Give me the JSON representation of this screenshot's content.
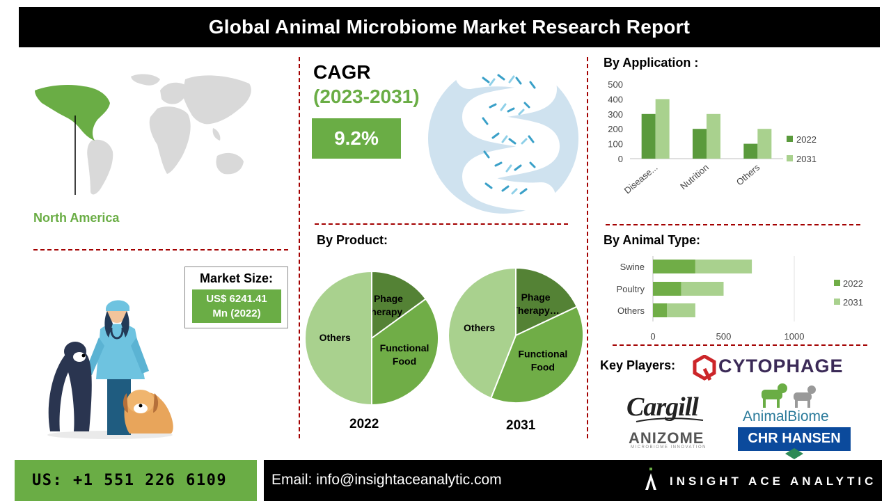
{
  "header": {
    "title": "Global Animal Microbiome Market Research Report"
  },
  "region": {
    "label": "North America"
  },
  "market_size": {
    "label": "Market Size:",
    "value_line1": "US$ 6241.41",
    "value_line2": "Mn (2022)"
  },
  "cagr": {
    "label": "CAGR",
    "period": "(2023-2031)",
    "value": "9.2%"
  },
  "sections": {
    "by_application": "By Application :",
    "by_product": "By Product:",
    "by_animal_type": "By  Animal Type:",
    "key_players": "Key Players:"
  },
  "key_players": {
    "cytophage": "CYTOPHAGE",
    "cargill": "Cargill",
    "animalbiome": "AnimalBiome",
    "anizome": "ANIZOME",
    "anizome_tagline": "MICROBIOME INNOVATION",
    "chr_hansen": "CHR HANSEN"
  },
  "colors": {
    "accent_green": "#6aad45",
    "dark_green": "#5a9a3c",
    "light_green": "#a9d18e",
    "mid_green": "#70ad47",
    "divider_red": "#a30000"
  },
  "chart_data": [
    {
      "type": "bar",
      "title": "By Application :",
      "categories": [
        "Disease...",
        "Nutrition",
        "Others"
      ],
      "series": [
        {
          "name": "2022",
          "values": [
            300,
            200,
            100
          ]
        },
        {
          "name": "2031",
          "values": [
            400,
            300,
            200
          ]
        }
      ],
      "ylim": [
        0,
        500
      ],
      "yticks": [
        "0",
        "100",
        "200",
        "300",
        "400",
        "500"
      ],
      "legend": "right",
      "grid": false
    },
    {
      "type": "pie",
      "title": "2022",
      "labels": [
        "Phage Therapy…",
        "Functional Food",
        "Others"
      ],
      "values": [
        15,
        35,
        50
      ]
    },
    {
      "type": "pie",
      "title": "2031",
      "labels": [
        "Phage Therapy…",
        "Functional Food",
        "Others"
      ],
      "values": [
        18,
        38,
        44
      ]
    },
    {
      "type": "bar",
      "orientation": "horizontal",
      "stacked": true,
      "title": "By  Animal Type:",
      "categories": [
        "Swine",
        "Poultry",
        "Others"
      ],
      "series": [
        {
          "name": "2022",
          "values": [
            300,
            200,
            100
          ]
        },
        {
          "name": "2031",
          "values": [
            400,
            300,
            200
          ]
        }
      ],
      "xlim": [
        0,
        1000
      ],
      "xticks": [
        "0",
        "500",
        "1000"
      ],
      "legend": "right",
      "grid": false
    }
  ],
  "footer": {
    "phone": "US: +1 551 226 6109",
    "email": "Email: info@insightaceanalytic.com",
    "brand": "INSIGHT ACE ANALYTIC"
  }
}
